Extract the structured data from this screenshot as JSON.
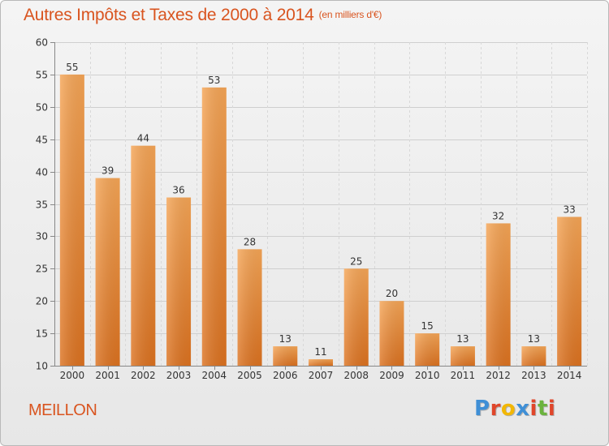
{
  "header": {
    "title": "Autres Impôts et Taxes de 2000 à 2014",
    "subtitle": "(en milliers d'€)"
  },
  "footer": {
    "commune": "MEILLON",
    "logo_letters": [
      "P",
      "r",
      "o",
      "x",
      "i",
      "t",
      "i"
    ],
    "logo_colors": [
      "#3f8fd6",
      "#e0462a",
      "#f2b705",
      "#3f8fd6",
      "#e0462a",
      "#6bb33e",
      "#e0462a"
    ]
  },
  "chart_data": {
    "type": "bar",
    "categories": [
      "2000",
      "2001",
      "2002",
      "2003",
      "2004",
      "2005",
      "2006",
      "2007",
      "2008",
      "2009",
      "2010",
      "2011",
      "2012",
      "2013",
      "2014"
    ],
    "values": [
      55,
      39,
      44,
      36,
      53,
      28,
      13,
      11,
      25,
      20,
      15,
      13,
      32,
      13,
      33
    ],
    "title": "Autres Impôts et Taxes de 2000 à 2014",
    "subtitle": "(en milliers d'€)",
    "ylim": [
      10,
      60
    ],
    "yticks": [
      10,
      15,
      20,
      25,
      30,
      35,
      40,
      45,
      50,
      55,
      60
    ],
    "grid": true,
    "bar_color": "#f08b2c",
    "legend": "none"
  }
}
